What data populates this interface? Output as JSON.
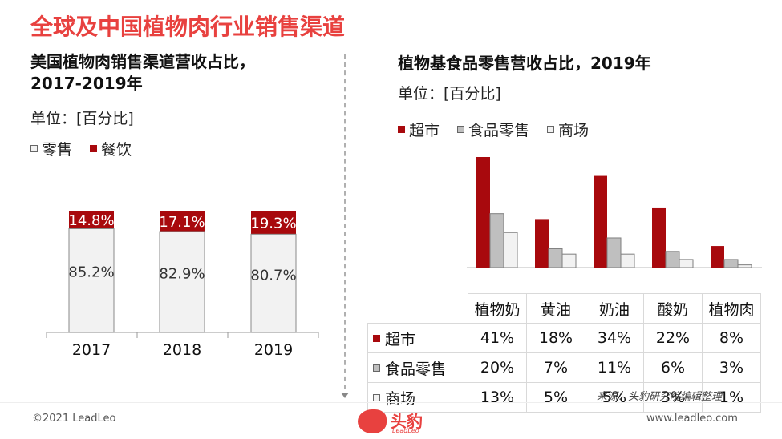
{
  "header": {
    "title": "全球及中国植物肉行业销售渠道"
  },
  "left": {
    "title_line1": "美国植物肉销售渠道营收占比，",
    "title_line2": "2017-2019年",
    "unit": "单位：[百分比]",
    "legend": {
      "retail": "零售",
      "food_service": "餐饮"
    }
  },
  "right": {
    "title": "植物基食品零售营收占比，2019年",
    "unit": "单位：[百分比]",
    "legend": {
      "supermarket": "超市",
      "grocery": "食品零售",
      "mall": "商场"
    },
    "table_rows": [
      {
        "label": "超市",
        "values": [
          "41%",
          "18%",
          "34%",
          "22%",
          "8%"
        ]
      },
      {
        "label": "食品零售",
        "values": [
          "20%",
          "7%",
          "11%",
          "6%",
          "3%"
        ]
      },
      {
        "label": "商场",
        "values": [
          "13%",
          "5%",
          "5%",
          "3%",
          "1%"
        ]
      }
    ]
  },
  "source": "来源：头豹研究院编辑整理",
  "footer": {
    "copyright": "©2021 LeadLeo",
    "website": "www.leadleo.com",
    "logo_text": "头豹",
    "logo_sub": "LeadLeo"
  },
  "colors": {
    "accent": "#e8413f",
    "dark_red": "#a8090d",
    "gray": "#bfbfbf",
    "light": "#f2f2f2"
  },
  "chart_data": [
    {
      "type": "bar",
      "stacked": true,
      "categories": [
        "2017",
        "2018",
        "2019"
      ],
      "series": [
        {
          "name": "零售",
          "values": [
            85.2,
            82.9,
            80.7
          ],
          "labels": [
            "85.2%",
            "82.9%",
            "80.7%"
          ],
          "color": "#f2f2f2"
        },
        {
          "name": "餐饮",
          "values": [
            14.8,
            17.1,
            19.3
          ],
          "labels": [
            "14.8%",
            "17.1%",
            "19.3%"
          ],
          "color": "#a8090d"
        }
      ],
      "ylim": [
        0,
        100
      ]
    },
    {
      "type": "bar",
      "categories": [
        "植物奶",
        "黄油",
        "奶油",
        "酸奶",
        "植物肉"
      ],
      "series": [
        {
          "name": "超市",
          "values": [
            41,
            18,
            34,
            22,
            8
          ],
          "color": "#a8090d"
        },
        {
          "name": "食品零售",
          "values": [
            20,
            7,
            11,
            6,
            3
          ],
          "color": "#bfbfbf"
        },
        {
          "name": "商场",
          "values": [
            13,
            5,
            5,
            3,
            1
          ],
          "color": "#f2f2f2"
        }
      ]
    }
  ]
}
